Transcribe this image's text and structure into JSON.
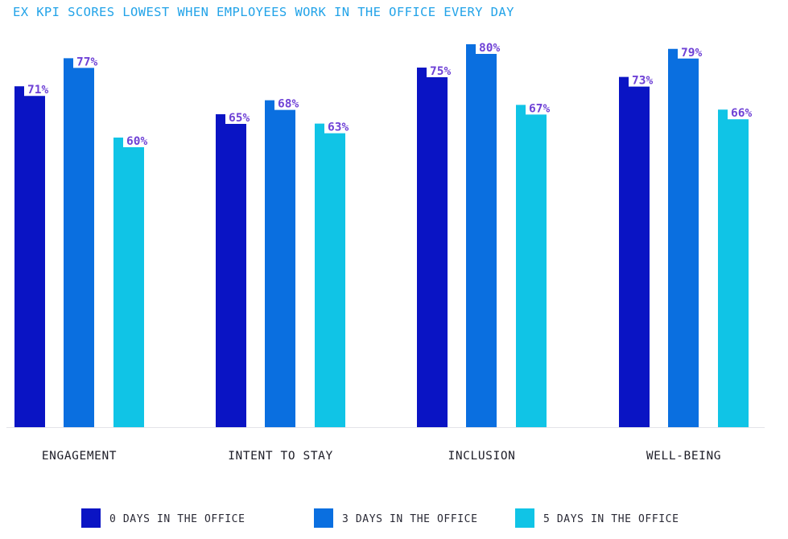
{
  "chart_data": {
    "type": "bar",
    "title": "EX KPI SCORES LOWEST WHEN EMPLOYEES WORK IN THE OFFICE EVERY DAY",
    "xlabel": "",
    "ylabel": "",
    "ylim": [
      0,
      100
    ],
    "grid": false,
    "legend_position": "bottom",
    "categories": [
      "ENGAGEMENT",
      "INTENT TO STAY",
      "INCLUSION",
      "WELL-BEING"
    ],
    "series": [
      {
        "name": "0 DAYS IN THE OFFICE",
        "color": "#0a14c4",
        "values": [
          71,
          65,
          75,
          73
        ],
        "labels": [
          "71%",
          "65%",
          "75%",
          "73%"
        ]
      },
      {
        "name": "3 DAYS IN THE OFFICE",
        "color": "#0a6fe0",
        "values": [
          77,
          68,
          80,
          79
        ],
        "labels": [
          "77%",
          "68%",
          "80%",
          "79%"
        ]
      },
      {
        "name": "5 DAYS IN THE OFFICE",
        "color": "#10c4e6",
        "values": [
          60,
          63,
          67,
          66
        ],
        "labels": [
          "60%",
          "63%",
          "67%",
          "66%"
        ]
      }
    ]
  },
  "colors": {
    "title": "#22a3e8",
    "value_label": "#6f42d6",
    "category_label": "#1e1e28",
    "legend_label": "#2a2a36",
    "baseline": "#e3e3e8",
    "background": "#ffffff"
  }
}
